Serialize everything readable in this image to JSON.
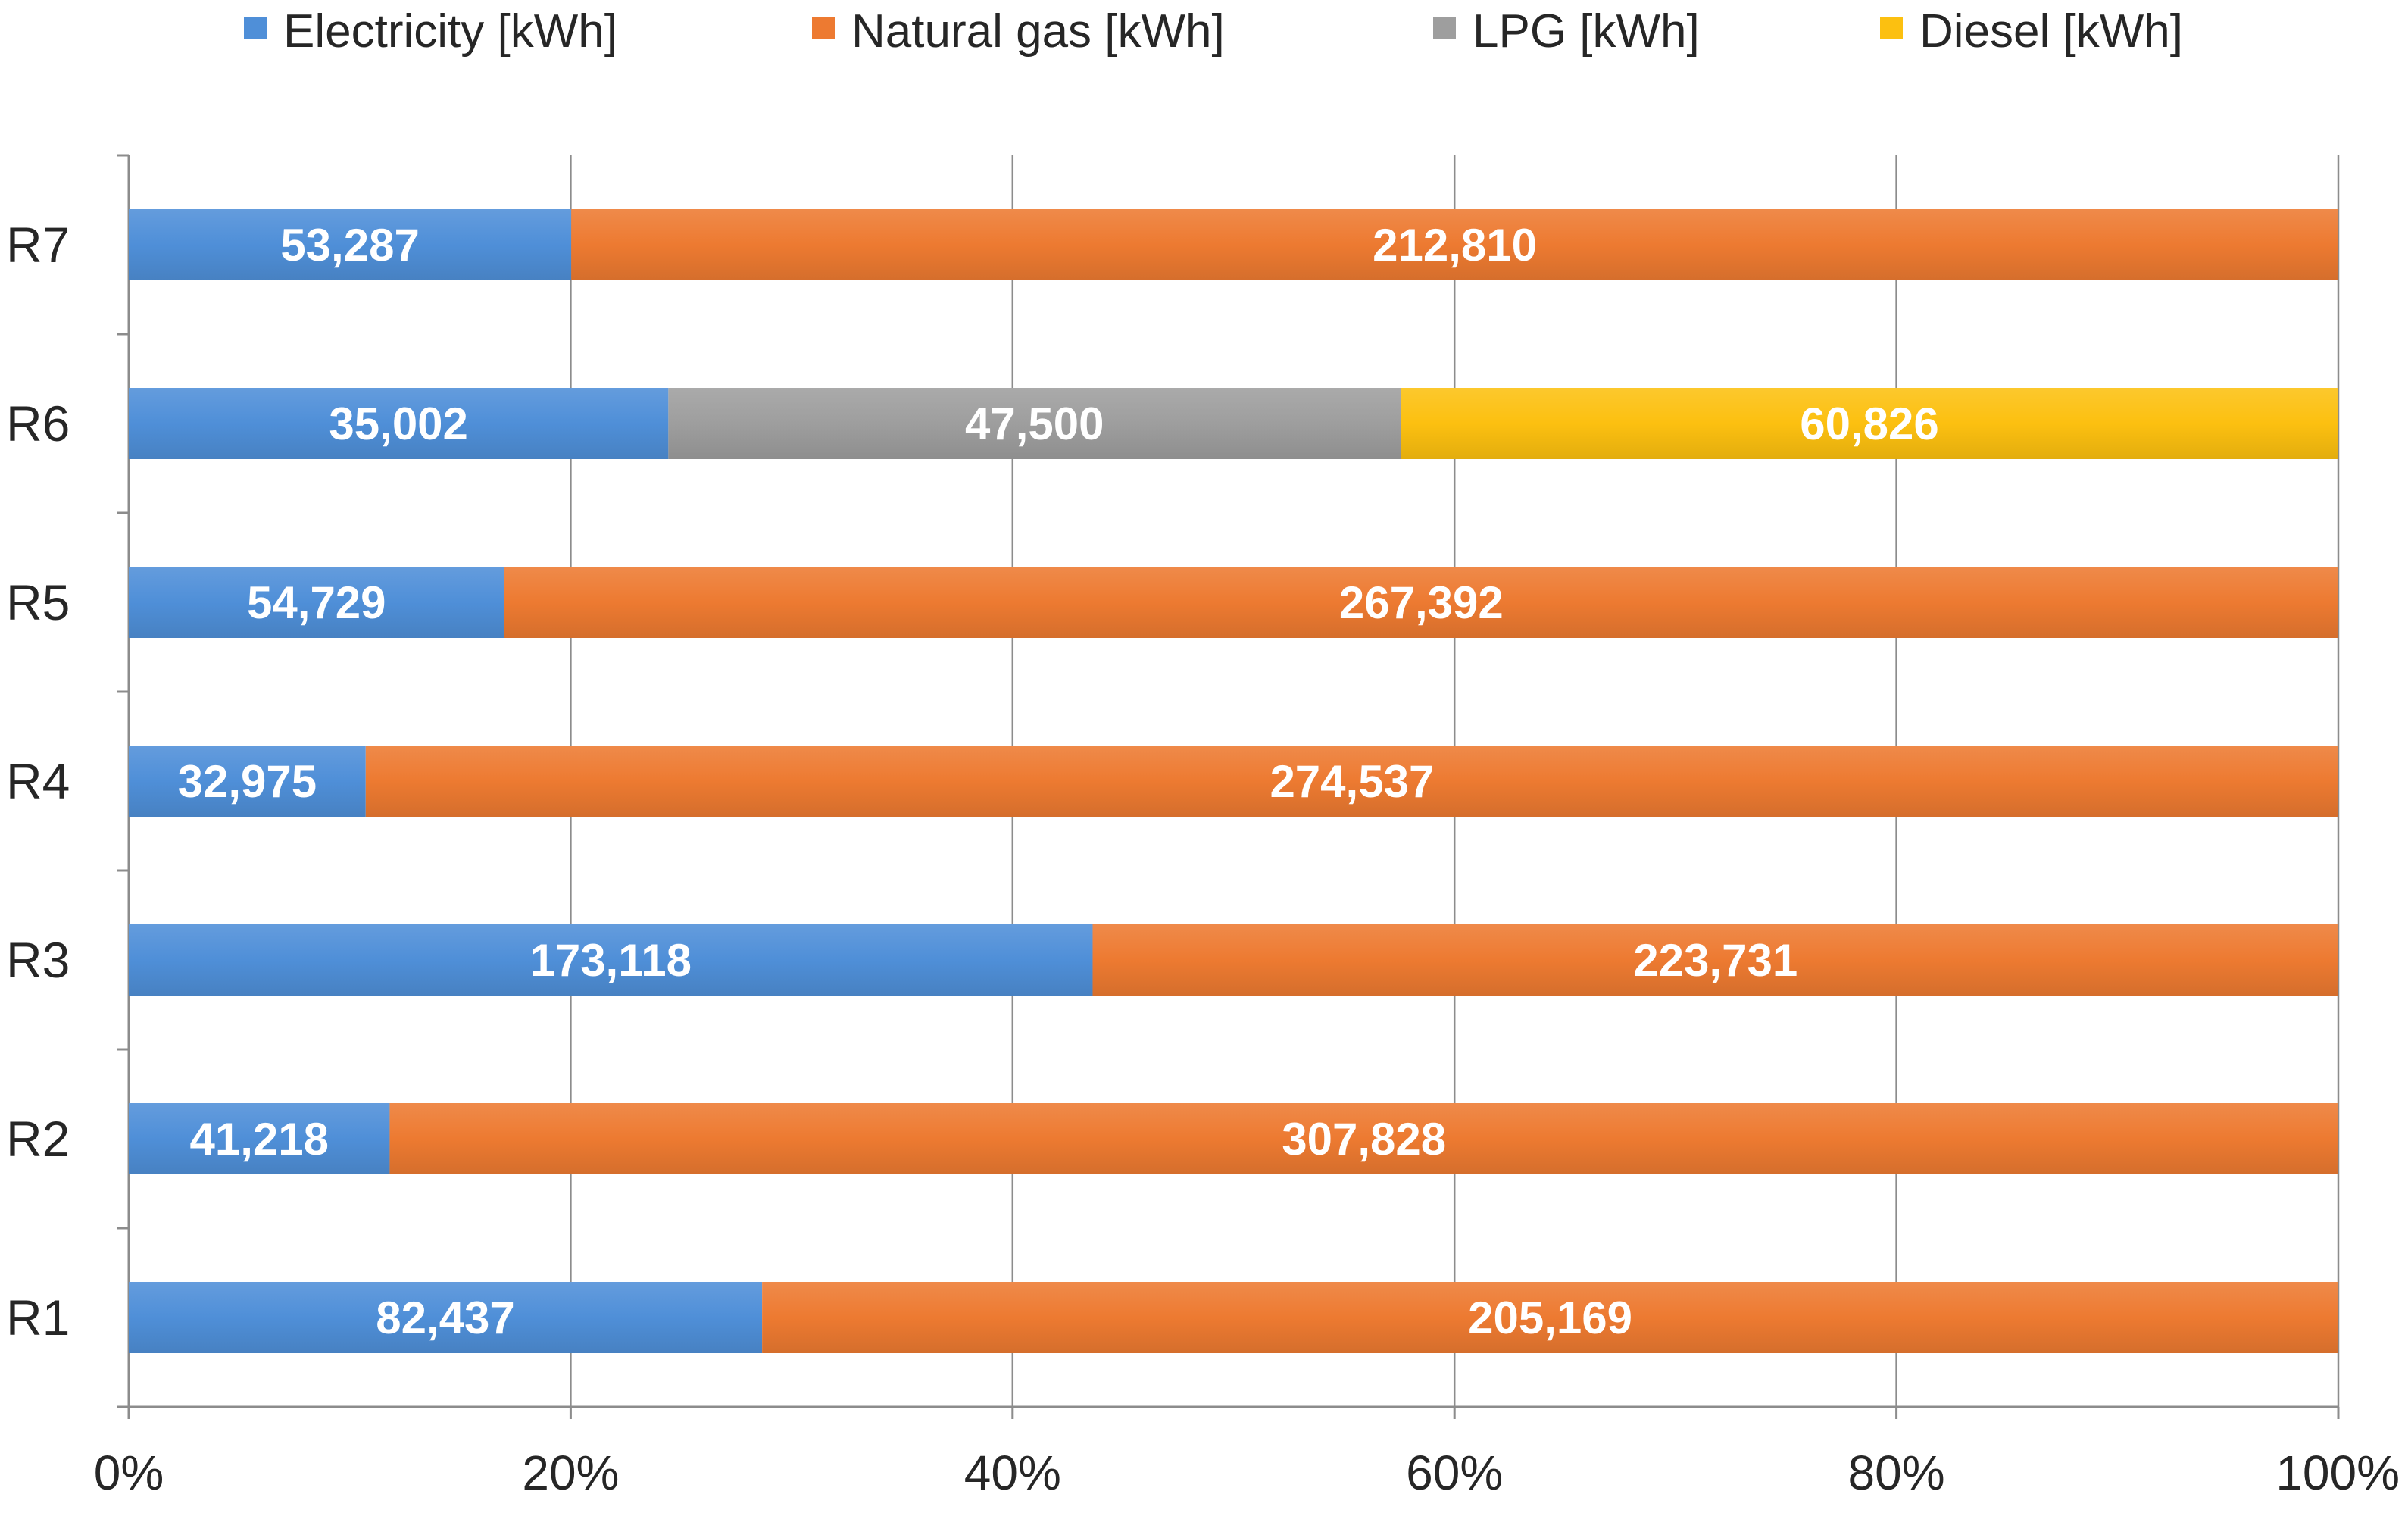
{
  "chart_data": {
    "type": "bar",
    "orientation": "horizontal",
    "stacking": "percent",
    "title": "",
    "xlabel": "",
    "ylabel": "",
    "xlim": [
      0,
      100
    ],
    "x_ticks": [
      "0%",
      "20%",
      "40%",
      "60%",
      "80%",
      "100%"
    ],
    "x_tick_values": [
      0,
      20,
      40,
      60,
      80,
      100
    ],
    "grid": true,
    "legend_position": "top",
    "categories": [
      "R7",
      "R6",
      "R5",
      "R4",
      "R3",
      "R2",
      "R1"
    ],
    "series": [
      {
        "name": "Electricity [kWh]",
        "color": "#4f8fd8",
        "values": [
          53287,
          35002,
          54729,
          32975,
          173118,
          41218,
          82437
        ],
        "labels": [
          "53,287",
          "35,002",
          "54,729",
          "32,975",
          "173,118",
          "41,218",
          "82,437"
        ]
      },
      {
        "name": "Natural gas [kWh]",
        "color": "#ed7a31",
        "values": [
          212810,
          0,
          267392,
          274537,
          223731,
          307828,
          205169
        ],
        "labels": [
          "212,810",
          "",
          "267,392",
          "274,537",
          "223,731",
          "307,828",
          "205,169"
        ]
      },
      {
        "name": "LPG  [kWh]",
        "color": "#9e9e9e",
        "values": [
          0,
          47500,
          0,
          0,
          0,
          0,
          0
        ],
        "labels": [
          "",
          "47,500",
          "",
          "",
          "",
          "",
          ""
        ]
      },
      {
        "name": "Diesel [kWh]",
        "color": "#fcc010",
        "values": [
          0,
          60826,
          0,
          0,
          0,
          0,
          0
        ],
        "labels": [
          "",
          "60,826",
          "",
          "",
          "",
          "",
          ""
        ]
      }
    ]
  }
}
